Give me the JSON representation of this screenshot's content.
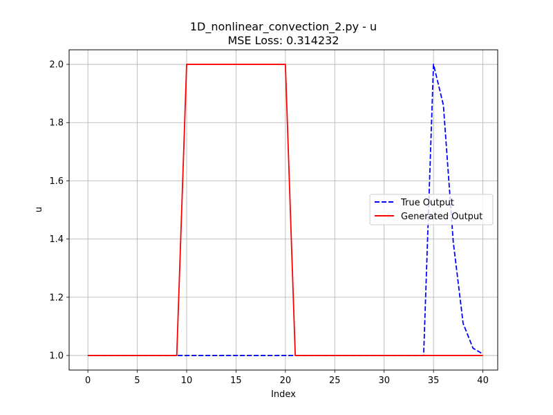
{
  "chart_data": {
    "type": "line",
    "title": "1D_nonlinear_convection_2.py - u",
    "subtitle": "MSE Loss: 0.314232",
    "xlabel": "Index",
    "ylabel": "u",
    "xlim": [
      -1.9,
      41.5
    ],
    "ylim": [
      0.95,
      2.05
    ],
    "xticks": [
      "0",
      "5",
      "10",
      "15",
      "20",
      "25",
      "30",
      "35",
      "40"
    ],
    "yticks": [
      "1.0",
      "1.2",
      "1.4",
      "1.6",
      "1.8",
      "2.0"
    ],
    "grid": true,
    "legend_position": "center-right",
    "series": [
      {
        "name": "True Output",
        "color": "#0000ff",
        "style": "dashed",
        "x": [
          0,
          1,
          2,
          3,
          4,
          5,
          6,
          7,
          8,
          9,
          10,
          11,
          12,
          13,
          14,
          15,
          16,
          17,
          18,
          19,
          20,
          21,
          22,
          23,
          24,
          25,
          26,
          27,
          28,
          29,
          30,
          31,
          32,
          33,
          34,
          35,
          36,
          37,
          38,
          39,
          40
        ],
        "y": [
          1,
          1,
          1,
          1,
          1,
          1,
          1,
          1,
          1,
          1,
          1,
          1,
          1,
          1,
          1,
          1,
          1,
          1,
          1,
          1,
          1,
          1,
          1,
          1,
          1,
          1,
          1,
          1,
          1,
          1,
          1,
          1,
          1,
          1,
          1,
          2,
          1.86,
          1.39,
          1.11,
          1.025,
          1.005
        ]
      },
      {
        "name": "Generated Output",
        "color": "#ff0000",
        "style": "solid",
        "x": [
          0,
          1,
          2,
          3,
          4,
          5,
          6,
          7,
          8,
          9,
          10,
          11,
          12,
          13,
          14,
          15,
          16,
          17,
          18,
          19,
          20,
          21,
          22,
          23,
          24,
          25,
          26,
          27,
          28,
          29,
          30,
          31,
          32,
          33,
          34,
          35,
          36,
          37,
          38,
          39,
          40
        ],
        "y": [
          1,
          1,
          1,
          1,
          1,
          1,
          1,
          1,
          1,
          1,
          2,
          2,
          2,
          2,
          2,
          2,
          2,
          2,
          2,
          2,
          2,
          1,
          1,
          1,
          1,
          1,
          1,
          1,
          1,
          1,
          1,
          1,
          1,
          1,
          1,
          1,
          1,
          1,
          1,
          1,
          1
        ]
      }
    ]
  }
}
